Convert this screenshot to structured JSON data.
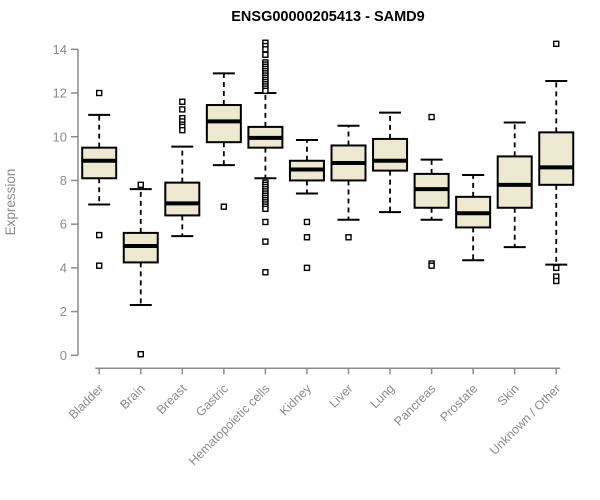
{
  "title": "ENSG00000205413 - SAMD9",
  "colors": {
    "box_fill": "#EDE8D0",
    "box_stroke": "#000000",
    "median": "#000000",
    "whisker": "#000000",
    "axis": "#8C8C8C",
    "tick_label": "#8C8C8C",
    "title": "#000000",
    "background": "#FFFFFF"
  },
  "chart_data": {
    "type": "boxplot",
    "title": "ENSG00000205413 - SAMD9",
    "xlabel": "",
    "ylabel": "Expression",
    "ylim": [
      0,
      14
    ],
    "yticks": [
      0,
      2,
      4,
      6,
      8,
      10,
      12,
      14
    ],
    "grid": false,
    "legend": false,
    "categories": [
      "Bladder",
      "Brain",
      "Breast",
      "Gastric",
      "Hematopoietic cells",
      "Kidney",
      "Liver",
      "Lung",
      "Pancreas",
      "Prostate",
      "Skin",
      "Unknown / Other"
    ],
    "series": [
      {
        "category": "Bladder",
        "whisker_low": 6.9,
        "q1": 8.1,
        "median": 8.9,
        "q3": 9.5,
        "whisker_high": 11.0,
        "outliers": [
          12.0,
          5.5,
          4.1
        ]
      },
      {
        "category": "Brain",
        "whisker_low": 2.3,
        "q1": 4.25,
        "median": 5.0,
        "q3": 5.6,
        "whisker_high": 7.6,
        "outliers": [
          7.8,
          0.05
        ]
      },
      {
        "category": "Breast",
        "whisker_low": 5.45,
        "q1": 6.4,
        "median": 6.95,
        "q3": 7.9,
        "whisker_high": 9.55,
        "outliers": [
          11.6,
          11.25,
          10.85,
          10.7,
          10.55,
          10.45,
          10.3
        ]
      },
      {
        "category": "Gastric",
        "whisker_low": 8.7,
        "q1": 9.75,
        "median": 10.7,
        "q3": 11.45,
        "whisker_high": 12.9,
        "outliers": [
          6.8
        ]
      },
      {
        "category": "Hematopoietic cells",
        "whisker_low": 8.1,
        "q1": 9.5,
        "median": 9.95,
        "q3": 10.45,
        "whisker_high": 12.0,
        "outliers": [
          14.3,
          14.15,
          14.0,
          13.75,
          13.4,
          13.3,
          13.2,
          13.1,
          13.0,
          12.9,
          12.8,
          12.7,
          12.6,
          12.5,
          12.4,
          12.3,
          12.2,
          12.1,
          7.9,
          7.8,
          7.7,
          7.6,
          7.5,
          7.4,
          7.3,
          7.2,
          7.1,
          7.0,
          6.9,
          6.8,
          6.7,
          6.1,
          5.2,
          3.8
        ]
      },
      {
        "category": "Kidney",
        "whisker_low": 7.4,
        "q1": 8.0,
        "median": 8.5,
        "q3": 8.9,
        "whisker_high": 9.85,
        "outliers": [
          6.1,
          5.4,
          4.0
        ]
      },
      {
        "category": "Liver",
        "whisker_low": 6.2,
        "q1": 8.0,
        "median": 8.8,
        "q3": 9.6,
        "whisker_high": 10.5,
        "outliers": [
          5.4
        ]
      },
      {
        "category": "Lung",
        "whisker_low": 6.55,
        "q1": 8.45,
        "median": 8.9,
        "q3": 9.9,
        "whisker_high": 11.1,
        "outliers": []
      },
      {
        "category": "Pancreas",
        "whisker_low": 6.2,
        "q1": 6.75,
        "median": 7.6,
        "q3": 8.3,
        "whisker_high": 8.95,
        "outliers": [
          10.9,
          4.2,
          4.1
        ]
      },
      {
        "category": "Prostate",
        "whisker_low": 4.35,
        "q1": 5.85,
        "median": 6.5,
        "q3": 7.25,
        "whisker_high": 8.25,
        "outliers": []
      },
      {
        "category": "Skin",
        "whisker_low": 4.95,
        "q1": 6.75,
        "median": 7.8,
        "q3": 9.1,
        "whisker_high": 10.65,
        "outliers": []
      },
      {
        "category": "Unknown / Other",
        "whisker_low": 4.15,
        "q1": 7.8,
        "median": 8.6,
        "q3": 10.2,
        "whisker_high": 12.55,
        "outliers": [
          14.25,
          4.0,
          3.6,
          3.4
        ]
      }
    ]
  }
}
